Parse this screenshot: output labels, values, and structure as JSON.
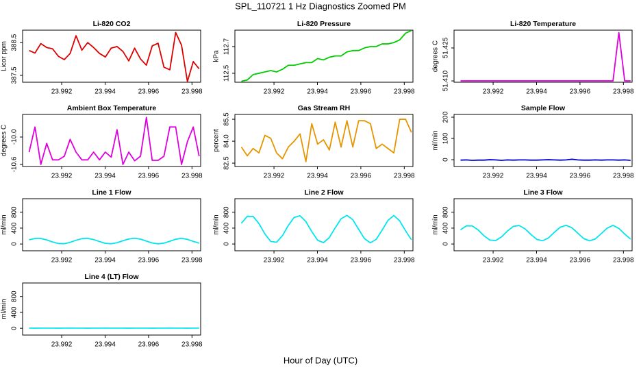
{
  "title": "SPL_110721  1 Hz Diagnostics Zoomed PM",
  "xlabel": "Hour of Day (UTC)",
  "chart_data": [
    {
      "type": "line",
      "title": "Li-820 CO2",
      "ylabel": "Licor ppm",
      "color": "#dd0000",
      "x": [
        23.9905,
        23.99077,
        23.99104,
        23.99131,
        23.99158,
        23.99185,
        23.99212,
        23.99239,
        23.99266,
        23.99293,
        23.9932,
        23.99347,
        23.99374,
        23.99401,
        23.99428,
        23.99455,
        23.99482,
        23.99509,
        23.99536,
        23.99563,
        23.9959,
        23.99617,
        23.99644,
        23.99671,
        23.99698,
        23.99725,
        23.99752,
        23.99779,
        23.99806,
        23.99833
      ],
      "values": [
        388.26,
        388.18,
        388.47,
        388.35,
        388.31,
        388.08,
        387.98,
        388.17,
        388.71,
        388.27,
        388.5,
        388.35,
        388.17,
        388.06,
        388.33,
        388.38,
        388.23,
        387.94,
        388.33,
        388.0,
        387.81,
        388.4,
        388.48,
        387.75,
        387.67,
        388.81,
        388.42,
        387.31,
        387.92,
        387.7
      ],
      "xlim": [
        23.9902,
        23.9984
      ],
      "xticks": [
        23.992,
        23.994,
        23.996,
        23.998
      ],
      "ylim": [
        387.29,
        388.88
      ],
      "yticks": [
        387.5,
        388.5
      ]
    },
    {
      "type": "line",
      "title": "Li-820 Pressure",
      "ylabel": "kPa",
      "color": "#00cc00",
      "x": [
        23.9905,
        23.99077,
        23.99104,
        23.99131,
        23.99158,
        23.99185,
        23.99212,
        23.99239,
        23.99266,
        23.99293,
        23.9932,
        23.99347,
        23.99374,
        23.99401,
        23.99428,
        23.99455,
        23.99482,
        23.99509,
        23.99536,
        23.99563,
        23.9959,
        23.99617,
        23.99644,
        23.99671,
        23.99698,
        23.99725,
        23.99752,
        23.99779,
        23.99806,
        23.99833
      ],
      "values": [
        112.44,
        112.45,
        112.49,
        112.5,
        112.51,
        112.52,
        112.51,
        112.53,
        112.56,
        112.56,
        112.57,
        112.58,
        112.58,
        112.61,
        112.6,
        112.62,
        112.63,
        112.63,
        112.66,
        112.67,
        112.67,
        112.69,
        112.7,
        112.7,
        112.72,
        112.72,
        112.73,
        112.75,
        112.8,
        112.82
      ],
      "xlim": [
        23.9902,
        23.9984
      ],
      "xticks": [
        23.992,
        23.994,
        23.996,
        23.998
      ],
      "ylim": [
        112.433,
        112.823
      ],
      "yticks": [
        112.5,
        112.7
      ]
    },
    {
      "type": "line",
      "title": "Li-820 Temperature",
      "ylabel": "degrees C",
      "color": "#dd00dd",
      "x": [
        23.9905,
        23.99077,
        23.99104,
        23.99131,
        23.99158,
        23.99185,
        23.99212,
        23.99239,
        23.99266,
        23.99293,
        23.9932,
        23.99347,
        23.99374,
        23.99401,
        23.99428,
        23.99455,
        23.99482,
        23.99509,
        23.99536,
        23.99563,
        23.9959,
        23.99617,
        23.99644,
        23.99671,
        23.99698,
        23.99725,
        23.99752,
        23.99779,
        23.99806,
        23.99833
      ],
      "values": [
        51.41,
        51.41,
        51.41,
        51.41,
        51.41,
        51.41,
        51.41,
        51.41,
        51.41,
        51.41,
        51.41,
        51.41,
        51.41,
        51.41,
        51.41,
        51.41,
        51.41,
        51.41,
        51.41,
        51.41,
        51.41,
        51.41,
        51.41,
        51.41,
        51.41,
        51.41,
        51.41,
        51.432,
        51.41,
        51.41
      ],
      "xlim": [
        23.9902,
        23.9984
      ],
      "xticks": [
        23.992,
        23.994,
        23.996,
        23.998
      ],
      "ylim": [
        51.4094,
        51.4331
      ],
      "yticks": [
        {
          "value": 51.41,
          "label": "51.410"
        },
        51.425
      ]
    },
    {
      "type": "line",
      "title": "Ambient Box Temperature",
      "ylabel": "degrees C",
      "color": "#dd00dd",
      "x": [
        23.9905,
        23.99077,
        23.99104,
        23.99131,
        23.99158,
        23.99185,
        23.99212,
        23.99239,
        23.99266,
        23.99293,
        23.9932,
        23.99347,
        23.99374,
        23.99401,
        23.99428,
        23.99455,
        23.99482,
        23.99509,
        23.99536,
        23.99563,
        23.9959,
        23.99617,
        23.99644,
        23.99671,
        23.99698,
        23.99725,
        23.99752,
        23.99779,
        23.99806,
        23.99833
      ],
      "values": [
        -10.33,
        -9.78,
        -10.6,
        -10.14,
        -10.5,
        -10.5,
        -10.42,
        -10.05,
        -10.33,
        -10.5,
        -10.5,
        -10.33,
        -10.5,
        -10.33,
        -10.44,
        -9.84,
        -10.6,
        -10.33,
        -10.52,
        -10.42,
        -9.57,
        -10.51,
        -10.51,
        -10.42,
        -9.78,
        -9.78,
        -10.6,
        -10.1,
        -9.78,
        -10.42
      ],
      "xlim": [
        23.9902,
        23.9984
      ],
      "xticks": [
        23.992,
        23.994,
        23.996,
        23.998
      ],
      "ylim": [
        -10.645,
        -9.505
      ],
      "yticks": [
        -10.6,
        {
          "value": -10,
          "label": "-10.0"
        }
      ]
    },
    {
      "type": "line",
      "title": "Gas Stream RH",
      "ylabel": "percent",
      "color": "#e69500",
      "x": [
        23.9905,
        23.99077,
        23.99104,
        23.99131,
        23.99158,
        23.99185,
        23.99212,
        23.99239,
        23.99266,
        23.99293,
        23.9932,
        23.99347,
        23.99374,
        23.99401,
        23.99428,
        23.99455,
        23.99482,
        23.99509,
        23.99536,
        23.99563,
        23.9959,
        23.99617,
        23.99644,
        23.99671,
        23.99698,
        23.99725,
        23.99752,
        23.99779,
        23.99806,
        23.99833
      ],
      "values": [
        83.6,
        83.0,
        83.5,
        83.2,
        84.4,
        84.2,
        83.2,
        82.8,
        83.6,
        84.0,
        84.5,
        82.6,
        85.2,
        83.8,
        84.1,
        83.4,
        85.3,
        83.6,
        85.4,
        83.6,
        85.4,
        85.4,
        85.2,
        83.5,
        83.8,
        83.5,
        83.2,
        85.5,
        85.5,
        84.6
      ],
      "xlim": [
        23.9902,
        23.9984
      ],
      "xticks": [
        23.992,
        23.994,
        23.996,
        23.998
      ],
      "ylim": [
        82.27,
        85.83
      ],
      "yticks": [
        82.5,
        {
          "value": 84,
          "label": "84.0"
        },
        85.5
      ]
    },
    {
      "type": "line",
      "title": "Sample Flow",
      "ylabel": "ml/min",
      "color": "#0000cc",
      "x": [
        23.9905,
        23.99077,
        23.99104,
        23.99131,
        23.99158,
        23.99185,
        23.99212,
        23.99239,
        23.99266,
        23.99293,
        23.9932,
        23.99347,
        23.99374,
        23.99401,
        23.99428,
        23.99455,
        23.99482,
        23.99509,
        23.99536,
        23.99563,
        23.9959,
        23.99617,
        23.99644,
        23.99671,
        23.99698,
        23.99725,
        23.99752,
        23.99779,
        23.99806,
        23.99833
      ],
      "values": [
        -2,
        -1,
        -3,
        -2,
        -2,
        0,
        -1,
        -3,
        -1,
        -2,
        -1,
        -1,
        -2,
        -2,
        -1,
        0,
        -1,
        -2,
        -1,
        2,
        -1,
        -2,
        -2,
        -1,
        -2,
        -1,
        -1,
        -2,
        -1,
        -3
      ],
      "xlim": [
        23.9902,
        23.9984
      ],
      "xticks": [
        23.992,
        23.994,
        23.996,
        23.998
      ],
      "ylim": [
        -32,
        213
      ],
      "yticks": [
        0,
        100,
        200
      ]
    },
    {
      "type": "line",
      "title": "Line 1 Flow",
      "ylabel": "ml/min",
      "color": "#00e5ee",
      "x": [
        23.9905,
        23.99077,
        23.99104,
        23.99131,
        23.99158,
        23.99185,
        23.99212,
        23.99239,
        23.99266,
        23.99293,
        23.9932,
        23.99347,
        23.99374,
        23.99401,
        23.99428,
        23.99455,
        23.99482,
        23.99509,
        23.99536,
        23.99563,
        23.9959,
        23.99617,
        23.99644,
        23.99671,
        23.99698,
        23.99725,
        23.99752,
        23.99779,
        23.99806,
        23.99833
      ],
      "values": [
        105,
        140,
        140,
        103,
        51,
        12,
        8,
        42,
        94,
        135,
        143,
        113,
        62,
        18,
        6,
        32,
        82,
        128,
        145,
        123,
        74,
        26,
        5,
        23,
        70,
        120,
        145,
        117,
        66,
        21
      ],
      "xlim": [
        23.9902,
        23.9984
      ],
      "xticks": [
        23.992,
        23.994,
        23.996,
        23.998
      ],
      "ylim": [
        -170,
        1140
      ],
      "yticks": [
        0,
        400,
        800
      ]
    },
    {
      "type": "line",
      "title": "Line 2 Flow",
      "ylabel": "ml/min",
      "color": "#00e5ee",
      "x": [
        23.9905,
        23.99077,
        23.99104,
        23.99131,
        23.99158,
        23.99185,
        23.99212,
        23.99239,
        23.99266,
        23.99293,
        23.9932,
        23.99347,
        23.99374,
        23.99401,
        23.99428,
        23.99455,
        23.99482,
        23.99509,
        23.99536,
        23.99563,
        23.9959,
        23.99617,
        23.99644,
        23.99671,
        23.99698,
        23.99725,
        23.99752,
        23.99779,
        23.99806,
        23.99833
      ],
      "values": [
        522,
        697,
        693,
        513,
        256,
        65,
        46,
        210,
        466,
        671,
        712,
        564,
        313,
        95,
        33,
        163,
        408,
        636,
        720,
        611,
        371,
        133,
        30,
        119,
        349,
        594,
        718,
        581,
        333,
        107
      ],
      "xlim": [
        23.9902,
        23.9984
      ],
      "xticks": [
        23.992,
        23.994,
        23.996,
        23.998
      ],
      "ylim": [
        -170,
        1140
      ],
      "yticks": [
        0,
        400,
        800
      ]
    },
    {
      "type": "line",
      "title": "Line 3 Flow",
      "ylabel": "ml/min",
      "color": "#00e5ee",
      "x": [
        23.9905,
        23.99077,
        23.99104,
        23.99131,
        23.99158,
        23.99185,
        23.99212,
        23.99239,
        23.99266,
        23.99293,
        23.9932,
        23.99347,
        23.99374,
        23.99401,
        23.99428,
        23.99455,
        23.99482,
        23.99509,
        23.99536,
        23.99563,
        23.9959,
        23.99617,
        23.99644,
        23.99671,
        23.99698,
        23.99725,
        23.99752,
        23.99779,
        23.99806,
        23.99833
      ],
      "values": [
        358,
        457,
        455,
        353,
        208,
        100,
        89,
        182,
        327,
        443,
        466,
        382,
        240,
        117,
        82,
        155,
        294,
        423,
        470,
        408,
        273,
        138,
        80,
        130,
        261,
        399,
        469,
        392,
        251,
        124
      ],
      "xlim": [
        23.9902,
        23.9984
      ],
      "xticks": [
        23.992,
        23.994,
        23.996,
        23.998
      ],
      "ylim": [
        -170,
        1140
      ],
      "yticks": [
        0,
        400,
        800
      ]
    },
    {
      "type": "line",
      "title": "Line 4 (LT) Flow",
      "ylabel": "ml/min",
      "color": "#00e5ee",
      "x": [
        23.9905,
        23.99077,
        23.99104,
        23.99131,
        23.99158,
        23.99185,
        23.99212,
        23.99239,
        23.99266,
        23.99293,
        23.9932,
        23.99347,
        23.99374,
        23.99401,
        23.99428,
        23.99455,
        23.99482,
        23.99509,
        23.99536,
        23.99563,
        23.9959,
        23.99617,
        23.99644,
        23.99671,
        23.99698,
        23.99725,
        23.99752,
        23.99779,
        23.99806,
        23.99833
      ],
      "values": [
        5,
        3,
        6,
        4,
        5,
        3,
        4,
        6,
        5,
        4,
        3,
        5,
        4,
        6,
        5,
        4,
        5,
        3,
        4,
        5,
        4,
        3,
        5,
        4,
        6,
        4,
        5,
        3,
        4,
        5
      ],
      "xlim": [
        23.9902,
        23.9984
      ],
      "xticks": [
        23.992,
        23.994,
        23.996,
        23.998
      ],
      "ylim": [
        -170,
        1140
      ],
      "yticks": [
        0,
        400,
        800
      ]
    }
  ]
}
